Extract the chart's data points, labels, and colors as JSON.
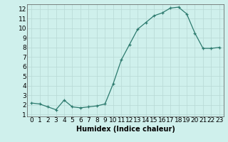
{
  "x": [
    0,
    1,
    2,
    3,
    4,
    5,
    6,
    7,
    8,
    9,
    10,
    11,
    12,
    13,
    14,
    15,
    16,
    17,
    18,
    19,
    20,
    21,
    22,
    23
  ],
  "y": [
    2.2,
    2.1,
    1.8,
    1.5,
    2.5,
    1.8,
    1.7,
    1.8,
    1.9,
    2.1,
    4.2,
    6.7,
    8.3,
    9.9,
    10.6,
    11.3,
    11.6,
    12.1,
    12.2,
    11.5,
    9.5,
    7.9,
    7.9,
    8.0
  ],
  "xlabel": "Humidex (Indice chaleur)",
  "xlim": [
    -0.5,
    23.5
  ],
  "ylim": [
    0.8,
    12.5
  ],
  "yticks": [
    1,
    2,
    3,
    4,
    5,
    6,
    7,
    8,
    9,
    10,
    11,
    12
  ],
  "xticks": [
    0,
    1,
    2,
    3,
    4,
    5,
    6,
    7,
    8,
    9,
    10,
    11,
    12,
    13,
    14,
    15,
    16,
    17,
    18,
    19,
    20,
    21,
    22,
    23
  ],
  "line_color": "#2d7a6e",
  "marker": "+",
  "bg_color": "#cff0ec",
  "grid_major_color": "#b8d8d4",
  "grid_minor_color": "#d8ecea",
  "spine_color": "#555555",
  "xlabel_fontsize": 7,
  "tick_fontsize": 6.5,
  "marker_size": 3,
  "linewidth": 0.9
}
